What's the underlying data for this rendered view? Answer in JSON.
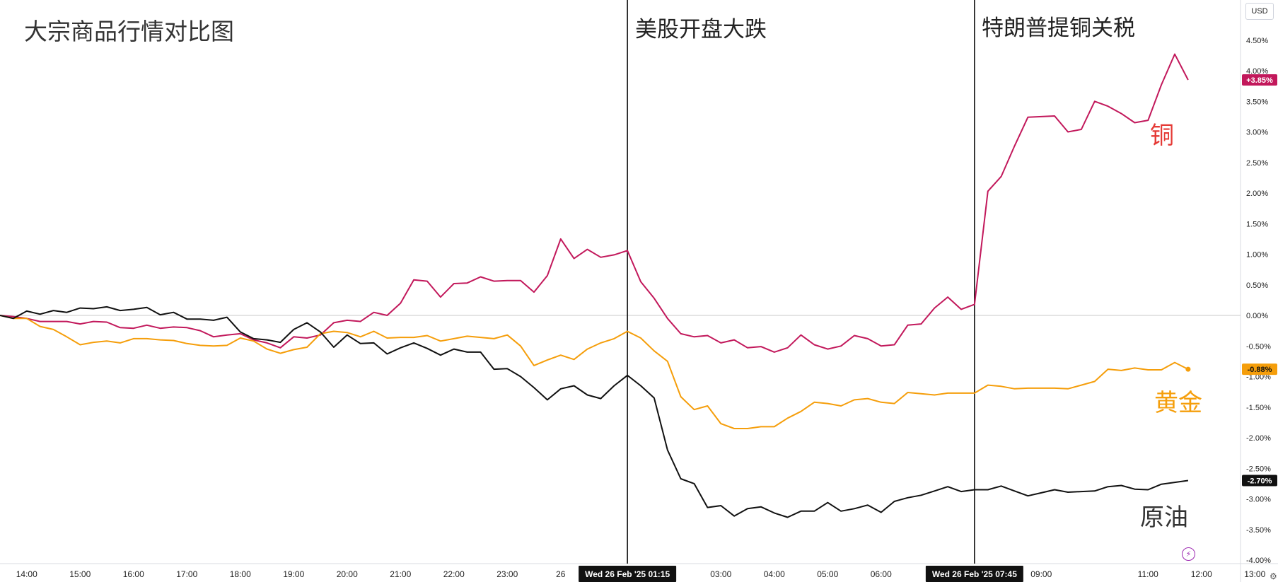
{
  "chart_data": {
    "type": "line",
    "title": "大宗商品行情对比图",
    "currency": "USD",
    "y_unit": "%",
    "ylim": [
      -4.0,
      4.75
    ],
    "y_ticks": [
      4.5,
      4.0,
      3.5,
      3.0,
      2.5,
      2.0,
      1.5,
      1.0,
      0.5,
      0.0,
      -0.5,
      -1.0,
      -1.5,
      -2.0,
      -2.5,
      -3.0,
      -3.5,
      -4.0
    ],
    "y_tick_labels": [
      "4.50%",
      "4.00%",
      "3.50%",
      "3.00%",
      "2.50%",
      "2.00%",
      "1.50%",
      "1.00%",
      "0.50%",
      "0.00%",
      "-0.50%",
      "-1.00%",
      "-1.50%",
      "-2.00%",
      "-2.50%",
      "-3.00%",
      "-3.50%",
      "-4.00%"
    ],
    "x_range": [
      "13:30",
      "13:00"
    ],
    "x_ticks": [
      {
        "h": 0.5,
        "label": "14:00"
      },
      {
        "h": 1.5,
        "label": "15:00"
      },
      {
        "h": 2.5,
        "label": "16:00"
      },
      {
        "h": 3.5,
        "label": "17:00"
      },
      {
        "h": 4.5,
        "label": "18:00"
      },
      {
        "h": 5.5,
        "label": "19:00"
      },
      {
        "h": 6.5,
        "label": "20:00"
      },
      {
        "h": 7.5,
        "label": "21:00"
      },
      {
        "h": 8.5,
        "label": "22:00"
      },
      {
        "h": 9.5,
        "label": "23:00"
      },
      {
        "h": 10.5,
        "label": "26"
      },
      {
        "h": 13.5,
        "label": "03:00"
      },
      {
        "h": 14.5,
        "label": "04:00"
      },
      {
        "h": 15.5,
        "label": "05:00"
      },
      {
        "h": 16.5,
        "label": "06:00"
      },
      {
        "h": 19.5,
        "label": "09:00"
      },
      {
        "h": 21.5,
        "label": "11:00"
      },
      {
        "h": 22.5,
        "label": "12:00"
      },
      {
        "h": 23.5,
        "label": "13:00"
      }
    ],
    "x_step_hours": 0.25,
    "series": [
      {
        "name": "铜",
        "color": "#c2185b",
        "last_value_label": "+3.85%",
        "values": [
          0.0,
          -0.02,
          -0.05,
          -0.1,
          -0.1,
          -0.1,
          -0.14,
          -0.1,
          -0.11,
          -0.2,
          -0.21,
          -0.16,
          -0.21,
          -0.19,
          -0.2,
          -0.25,
          -0.35,
          -0.32,
          -0.3,
          -0.4,
          -0.45,
          -0.53,
          -0.35,
          -0.37,
          -0.32,
          -0.12,
          -0.08,
          -0.1,
          0.05,
          0.0,
          0.2,
          0.58,
          0.56,
          0.3,
          0.52,
          0.53,
          0.63,
          0.56,
          0.57,
          0.57,
          0.38,
          0.65,
          1.25,
          0.93,
          1.08,
          0.95,
          0.99,
          1.06,
          0.55,
          0.28,
          -0.05,
          -0.3,
          -0.35,
          -0.33,
          -0.45,
          -0.4,
          -0.53,
          -0.51,
          -0.6,
          -0.53,
          -0.32,
          -0.48,
          -0.55,
          -0.5,
          -0.33,
          -0.38,
          -0.5,
          -0.48,
          -0.16,
          -0.14,
          0.12,
          0.3,
          0.1,
          0.18,
          2.03,
          2.27,
          2.77,
          3.24,
          3.25,
          3.26,
          3.0,
          3.04,
          3.5,
          3.42,
          3.3,
          3.15,
          3.19,
          3.77,
          4.27,
          3.85
        ]
      },
      {
        "name": "黄金",
        "color": "#f59e0b",
        "last_value_label": "-0.88%",
        "values": [
          0.0,
          -0.05,
          -0.05,
          -0.18,
          -0.23,
          -0.35,
          -0.48,
          -0.44,
          -0.42,
          -0.45,
          -0.38,
          -0.38,
          -0.4,
          -0.41,
          -0.46,
          -0.49,
          -0.5,
          -0.49,
          -0.37,
          -0.42,
          -0.55,
          -0.62,
          -0.56,
          -0.52,
          -0.3,
          -0.26,
          -0.28,
          -0.35,
          -0.26,
          -0.37,
          -0.36,
          -0.36,
          -0.33,
          -0.42,
          -0.38,
          -0.34,
          -0.36,
          -0.38,
          -0.32,
          -0.5,
          -0.82,
          -0.73,
          -0.65,
          -0.72,
          -0.55,
          -0.45,
          -0.38,
          -0.26,
          -0.37,
          -0.58,
          -0.75,
          -1.33,
          -1.54,
          -1.48,
          -1.77,
          -1.85,
          -1.85,
          -1.82,
          -1.82,
          -1.68,
          -1.57,
          -1.42,
          -1.44,
          -1.48,
          -1.38,
          -1.36,
          -1.42,
          -1.44,
          -1.26,
          -1.28,
          -1.3,
          -1.27,
          -1.27,
          -1.27,
          -1.14,
          -1.16,
          -1.2,
          -1.19,
          -1.19,
          -1.19,
          -1.2,
          -1.14,
          -1.08,
          -0.88,
          -0.9,
          -0.86,
          -0.89,
          -0.89,
          -0.77,
          -0.88
        ]
      },
      {
        "name": "原油",
        "color": "#111111",
        "last_value_label": "-2.70%",
        "values": [
          0.0,
          -0.05,
          0.07,
          0.02,
          0.08,
          0.05,
          0.12,
          0.11,
          0.14,
          0.08,
          0.1,
          0.13,
          0.01,
          0.05,
          -0.06,
          -0.06,
          -0.08,
          -0.03,
          -0.27,
          -0.38,
          -0.4,
          -0.44,
          -0.23,
          -0.12,
          -0.27,
          -0.52,
          -0.32,
          -0.46,
          -0.45,
          -0.63,
          -0.53,
          -0.45,
          -0.54,
          -0.65,
          -0.55,
          -0.6,
          -0.6,
          -0.88,
          -0.87,
          -1.0,
          -1.18,
          -1.38,
          -1.2,
          -1.15,
          -1.3,
          -1.36,
          -1.15,
          -0.98,
          -1.15,
          -1.35,
          -2.2,
          -2.67,
          -2.75,
          -3.14,
          -3.11,
          -3.28,
          -3.16,
          -3.13,
          -3.23,
          -3.3,
          -3.2,
          -3.2,
          -3.06,
          -3.2,
          -3.16,
          -3.1,
          -3.22,
          -3.04,
          -2.98,
          -2.94,
          -2.87,
          -2.8,
          -2.88,
          -2.85,
          -2.85,
          -2.79,
          -2.87,
          -2.95,
          -2.9,
          -2.85,
          -2.89,
          -2.88,
          -2.87,
          -2.8,
          -2.78,
          -2.84,
          -2.85,
          -2.76,
          -2.73,
          -2.7
        ]
      }
    ],
    "annotations": [
      {
        "text": "美股开盘大跌",
        "x_label": "Wed 26 Feb '25  01:15"
      },
      {
        "text": "特朗普提铜关税",
        "x_label": "Wed 26 Feb '25  07:45"
      }
    ],
    "grid": false
  }
}
